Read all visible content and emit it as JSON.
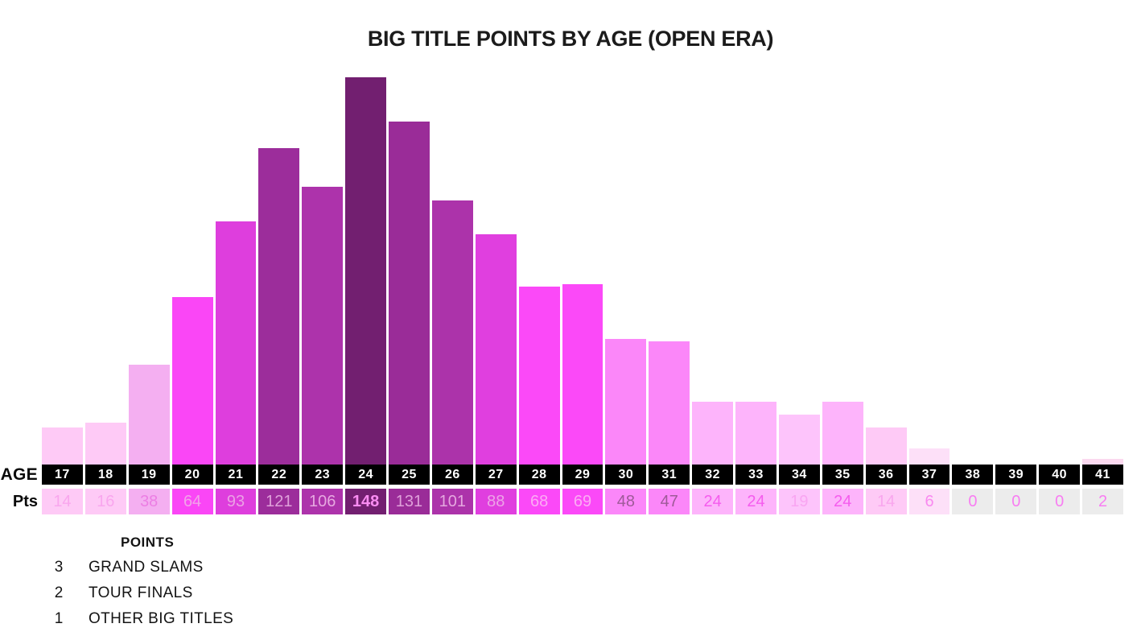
{
  "title": "BIG TITLE POINTS BY AGE (OPEN ERA)",
  "axis": {
    "age_label": "AGE",
    "pts_label": "Pts"
  },
  "legend": {
    "header": "POINTS",
    "items": [
      {
        "points": "3",
        "label": "GRAND SLAMS"
      },
      {
        "points": "2",
        "label": "TOUR FINALS"
      },
      {
        "points": "1",
        "label": "OTHER BIG TITLES"
      }
    ]
  },
  "colors": {
    "background": "#ffffff",
    "title_text": "#1b1b1b",
    "age_cell_bg": "#000000",
    "age_cell_text": "#ffffff",
    "zero_cell_bg": "#ececec",
    "max_color": "#721f70",
    "min_color": "#fecaf6"
  },
  "chart_data": {
    "type": "bar",
    "title": "BIG TITLE POINTS BY AGE (OPEN ERA)",
    "xlabel": "AGE",
    "ylabel": "Pts",
    "ylim": [
      0,
      148
    ],
    "grid": false,
    "legend_position": "bottom-left",
    "categories": [
      "17",
      "18",
      "19",
      "20",
      "21",
      "22",
      "23",
      "24",
      "25",
      "26",
      "27",
      "28",
      "29",
      "30",
      "31",
      "32",
      "33",
      "34",
      "35",
      "36",
      "37",
      "38",
      "39",
      "40",
      "41"
    ],
    "values": [
      14,
      16,
      38,
      64,
      93,
      121,
      106,
      148,
      131,
      101,
      88,
      68,
      69,
      48,
      47,
      24,
      24,
      19,
      24,
      14,
      6,
      0,
      0,
      0,
      2
    ],
    "bar_colors": [
      "#fecaf6",
      "#fecaf6",
      "#f4aff1",
      "#fa46f6",
      "#de3edd",
      "#9c2d9b",
      "#ad33ab",
      "#721f70",
      "#9a2c98",
      "#ac33aa",
      "#e03fdf",
      "#fb49f8",
      "#fb49f8",
      "#fb87f9",
      "#fb87f9",
      "#fdb4fb",
      "#fdb4fb",
      "#fdc4fb",
      "#fdb4fb",
      "#fecaf6",
      "#fde0f8",
      "#ececec",
      "#ececec",
      "#ececec",
      "#fbd9ef"
    ],
    "cell_colors": [
      "#fecaf6",
      "#fecaf6",
      "#f4aff1",
      "#fa46f6",
      "#de3edd",
      "#9c2d9b",
      "#ad33ab",
      "#721f70",
      "#9a2c98",
      "#ac33aa",
      "#e03fdf",
      "#fb49f8",
      "#fb49f8",
      "#fb87f9",
      "#fb87f9",
      "#fdb4fb",
      "#fdb4fb",
      "#fdc4fb",
      "#fdb4fb",
      "#fecaf6",
      "#fde0f8",
      "#ececec",
      "#ececec",
      "#ececec",
      "#ececec"
    ],
    "value_text_colors": [
      "#f9a6ee",
      "#f9a6ee",
      "#ec7ee4",
      "#f2a3e9",
      "#eba0e5",
      "#dfa0da",
      "#e6a9e0",
      "#fa8cf2",
      "#dfa0da",
      "#e5a8df",
      "#eda3e7",
      "#fcabf4",
      "#fcabf4",
      "#9e5a98",
      "#9e5a98",
      "#f55cee",
      "#f55cee",
      "#f9a5f2",
      "#f55cee",
      "#f9a6ee",
      "#f98af0",
      "#f87df2",
      "#f87df2",
      "#f87df2",
      "#f87df2"
    ],
    "max_value_bold": true
  }
}
